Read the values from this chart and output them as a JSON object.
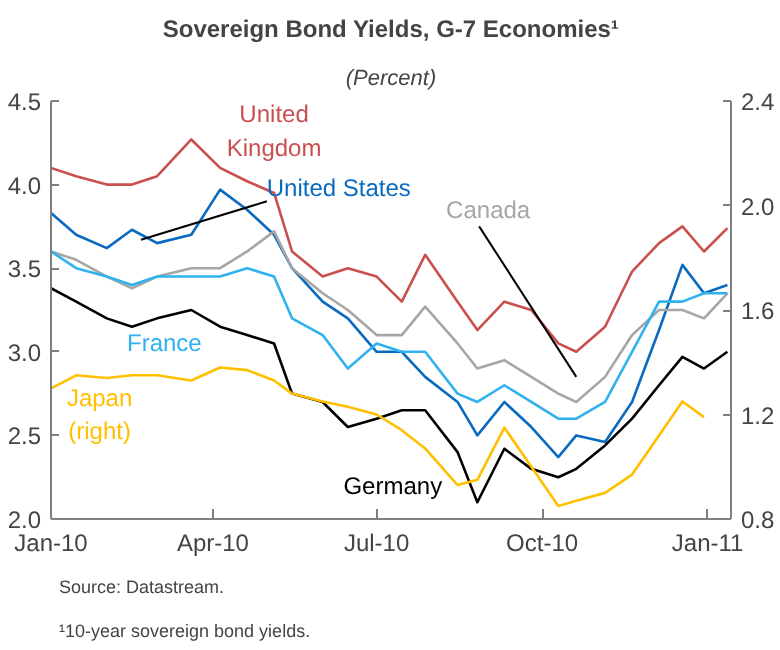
{
  "chart_data": {
    "type": "line",
    "title": "Sovereign Bond Yields, G-7 Economies¹",
    "subtitle": "(Percent)",
    "annotations": [
      "Source: Datastream.",
      "¹10-year sovereign bond yields."
    ],
    "xlim": [
      "2010-01-01",
      "2011-01-14"
    ],
    "xticks": [
      {
        "value": "2010-01-01",
        "label": "Jan-10"
      },
      {
        "value": "2010-04-01",
        "label": "Apr-10"
      },
      {
        "value": "2010-07-01",
        "label": "Jul-10"
      },
      {
        "value": "2010-10-01",
        "label": "Oct-10"
      },
      {
        "value": "2011-01-01",
        "label": "Jan-11"
      }
    ],
    "ylim": [
      2.0,
      4.5
    ],
    "yticks": [
      {
        "value": 2,
        "label": "2.0"
      },
      2.5,
      {
        "value": 3,
        "label": "3.0"
      },
      3.5,
      {
        "value": 4,
        "label": "4.0"
      },
      4.5
    ],
    "y2lim": [
      0.8,
      2.4
    ],
    "y2ticks": [
      0.8,
      1.2,
      1.6,
      {
        "value": 2,
        "label": "2.0"
      },
      2.4
    ],
    "grid": false,
    "marker": "none",
    "line_style": "solid",
    "x": [
      "2010-01-01",
      "2010-01-15",
      "2010-02-01",
      "2010-02-15",
      "2010-03-01",
      "2010-03-20",
      "2010-04-05",
      "2010-04-20",
      "2010-05-05",
      "2010-05-15",
      "2010-06-01",
      "2010-06-15",
      "2010-07-01",
      "2010-07-15",
      "2010-07-28",
      "2010-08-15",
      "2010-08-26",
      "2010-09-10",
      "2010-09-25",
      "2010-10-10",
      "2010-10-20",
      "2010-11-05",
      "2010-11-20",
      "2010-12-05",
      "2010-12-18",
      "2010-12-30",
      "2011-01-12"
    ],
    "series": [
      {
        "name": "United Kingdom",
        "color": "#c9504f",
        "values": [
          4.1,
          4.05,
          4.0,
          4.0,
          4.05,
          4.27,
          4.1,
          4.02,
          3.95,
          3.6,
          3.45,
          3.5,
          3.45,
          3.3,
          3.58,
          3.3,
          3.13,
          3.3,
          3.25,
          3.05,
          3.0,
          3.15,
          3.48,
          3.65,
          3.75,
          3.6,
          3.74
        ]
      },
      {
        "name": "United States",
        "color": "#0a6ac0",
        "values": [
          3.83,
          3.7,
          3.62,
          3.73,
          3.65,
          3.7,
          3.97,
          3.85,
          3.7,
          3.5,
          3.3,
          3.2,
          3.0,
          3.0,
          2.85,
          2.7,
          2.5,
          2.7,
          2.55,
          2.37,
          2.5,
          2.46,
          2.7,
          3.13,
          3.52,
          3.35,
          3.4
        ]
      },
      {
        "name": "Canada",
        "color": "#a6a6a6",
        "values": [
          3.6,
          3.55,
          3.45,
          3.38,
          3.45,
          3.5,
          3.5,
          3.6,
          3.72,
          3.5,
          3.35,
          3.25,
          3.1,
          3.1,
          3.27,
          3.05,
          2.9,
          2.95,
          2.85,
          2.75,
          2.7,
          2.85,
          3.1,
          3.25,
          3.25,
          3.2,
          3.35
        ]
      },
      {
        "name": "France",
        "color": "#2fb2ee",
        "values": [
          3.6,
          3.5,
          3.45,
          3.4,
          3.45,
          3.45,
          3.45,
          3.5,
          3.45,
          3.2,
          3.1,
          2.9,
          3.05,
          3.0,
          3.0,
          2.75,
          2.7,
          2.8,
          2.7,
          2.6,
          2.6,
          2.7,
          3.0,
          3.3,
          3.3,
          3.35,
          3.35
        ]
      },
      {
        "name": "Germany",
        "color": "#000000",
        "values": [
          3.38,
          3.3,
          3.2,
          3.15,
          3.2,
          3.25,
          3.15,
          3.1,
          3.05,
          2.75,
          2.7,
          2.55,
          2.6,
          2.65,
          2.65,
          2.4,
          2.1,
          2.42,
          2.3,
          2.25,
          2.3,
          2.44,
          2.6,
          2.8,
          2.97,
          2.9,
          3.0
        ]
      },
      {
        "name": "Japan (right)",
        "color": "#ffc000",
        "axis": "y2",
        "values": [
          1.3,
          1.35,
          1.34,
          1.35,
          1.35,
          1.33,
          1.38,
          1.37,
          1.33,
          1.28,
          1.25,
          1.23,
          1.2,
          1.14,
          1.07,
          0.93,
          0.95,
          1.15,
          1.0,
          0.85,
          0.87,
          0.9,
          0.97,
          1.12,
          1.25,
          1.19,
          null
        ]
      }
    ]
  }
}
